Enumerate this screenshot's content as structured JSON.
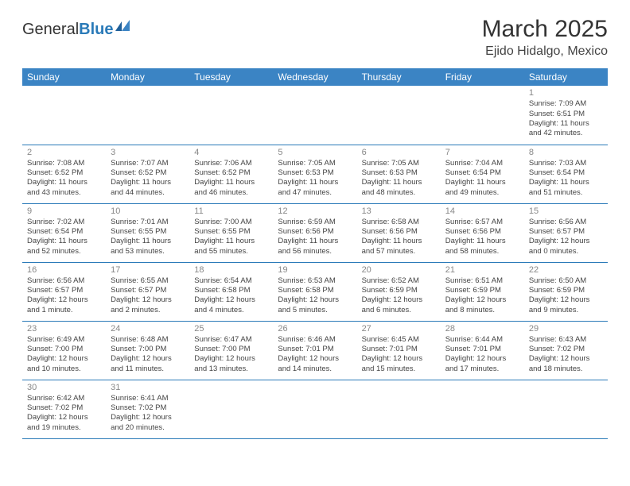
{
  "brand": {
    "part1": "General",
    "part2": "Blue"
  },
  "title": "March 2025",
  "location": "Ejido Hidalgo, Mexico",
  "colors": {
    "header_bg": "#3b84c4",
    "header_text": "#ffffff",
    "border": "#2a7ab8",
    "daynum": "#888888",
    "text": "#444444"
  },
  "weekdays": [
    "Sunday",
    "Monday",
    "Tuesday",
    "Wednesday",
    "Thursday",
    "Friday",
    "Saturday"
  ],
  "weeks": [
    [
      null,
      null,
      null,
      null,
      null,
      null,
      {
        "n": "1",
        "sr": "Sunrise: 7:09 AM",
        "ss": "Sunset: 6:51 PM",
        "dl": "Daylight: 11 hours and 42 minutes."
      }
    ],
    [
      {
        "n": "2",
        "sr": "Sunrise: 7:08 AM",
        "ss": "Sunset: 6:52 PM",
        "dl": "Daylight: 11 hours and 43 minutes."
      },
      {
        "n": "3",
        "sr": "Sunrise: 7:07 AM",
        "ss": "Sunset: 6:52 PM",
        "dl": "Daylight: 11 hours and 44 minutes."
      },
      {
        "n": "4",
        "sr": "Sunrise: 7:06 AM",
        "ss": "Sunset: 6:52 PM",
        "dl": "Daylight: 11 hours and 46 minutes."
      },
      {
        "n": "5",
        "sr": "Sunrise: 7:05 AM",
        "ss": "Sunset: 6:53 PM",
        "dl": "Daylight: 11 hours and 47 minutes."
      },
      {
        "n": "6",
        "sr": "Sunrise: 7:05 AM",
        "ss": "Sunset: 6:53 PM",
        "dl": "Daylight: 11 hours and 48 minutes."
      },
      {
        "n": "7",
        "sr": "Sunrise: 7:04 AM",
        "ss": "Sunset: 6:54 PM",
        "dl": "Daylight: 11 hours and 49 minutes."
      },
      {
        "n": "8",
        "sr": "Sunrise: 7:03 AM",
        "ss": "Sunset: 6:54 PM",
        "dl": "Daylight: 11 hours and 51 minutes."
      }
    ],
    [
      {
        "n": "9",
        "sr": "Sunrise: 7:02 AM",
        "ss": "Sunset: 6:54 PM",
        "dl": "Daylight: 11 hours and 52 minutes."
      },
      {
        "n": "10",
        "sr": "Sunrise: 7:01 AM",
        "ss": "Sunset: 6:55 PM",
        "dl": "Daylight: 11 hours and 53 minutes."
      },
      {
        "n": "11",
        "sr": "Sunrise: 7:00 AM",
        "ss": "Sunset: 6:55 PM",
        "dl": "Daylight: 11 hours and 55 minutes."
      },
      {
        "n": "12",
        "sr": "Sunrise: 6:59 AM",
        "ss": "Sunset: 6:56 PM",
        "dl": "Daylight: 11 hours and 56 minutes."
      },
      {
        "n": "13",
        "sr": "Sunrise: 6:58 AM",
        "ss": "Sunset: 6:56 PM",
        "dl": "Daylight: 11 hours and 57 minutes."
      },
      {
        "n": "14",
        "sr": "Sunrise: 6:57 AM",
        "ss": "Sunset: 6:56 PM",
        "dl": "Daylight: 11 hours and 58 minutes."
      },
      {
        "n": "15",
        "sr": "Sunrise: 6:56 AM",
        "ss": "Sunset: 6:57 PM",
        "dl": "Daylight: 12 hours and 0 minutes."
      }
    ],
    [
      {
        "n": "16",
        "sr": "Sunrise: 6:56 AM",
        "ss": "Sunset: 6:57 PM",
        "dl": "Daylight: 12 hours and 1 minute."
      },
      {
        "n": "17",
        "sr": "Sunrise: 6:55 AM",
        "ss": "Sunset: 6:57 PM",
        "dl": "Daylight: 12 hours and 2 minutes."
      },
      {
        "n": "18",
        "sr": "Sunrise: 6:54 AM",
        "ss": "Sunset: 6:58 PM",
        "dl": "Daylight: 12 hours and 4 minutes."
      },
      {
        "n": "19",
        "sr": "Sunrise: 6:53 AM",
        "ss": "Sunset: 6:58 PM",
        "dl": "Daylight: 12 hours and 5 minutes."
      },
      {
        "n": "20",
        "sr": "Sunrise: 6:52 AM",
        "ss": "Sunset: 6:59 PM",
        "dl": "Daylight: 12 hours and 6 minutes."
      },
      {
        "n": "21",
        "sr": "Sunrise: 6:51 AM",
        "ss": "Sunset: 6:59 PM",
        "dl": "Daylight: 12 hours and 8 minutes."
      },
      {
        "n": "22",
        "sr": "Sunrise: 6:50 AM",
        "ss": "Sunset: 6:59 PM",
        "dl": "Daylight: 12 hours and 9 minutes."
      }
    ],
    [
      {
        "n": "23",
        "sr": "Sunrise: 6:49 AM",
        "ss": "Sunset: 7:00 PM",
        "dl": "Daylight: 12 hours and 10 minutes."
      },
      {
        "n": "24",
        "sr": "Sunrise: 6:48 AM",
        "ss": "Sunset: 7:00 PM",
        "dl": "Daylight: 12 hours and 11 minutes."
      },
      {
        "n": "25",
        "sr": "Sunrise: 6:47 AM",
        "ss": "Sunset: 7:00 PM",
        "dl": "Daylight: 12 hours and 13 minutes."
      },
      {
        "n": "26",
        "sr": "Sunrise: 6:46 AM",
        "ss": "Sunset: 7:01 PM",
        "dl": "Daylight: 12 hours and 14 minutes."
      },
      {
        "n": "27",
        "sr": "Sunrise: 6:45 AM",
        "ss": "Sunset: 7:01 PM",
        "dl": "Daylight: 12 hours and 15 minutes."
      },
      {
        "n": "28",
        "sr": "Sunrise: 6:44 AM",
        "ss": "Sunset: 7:01 PM",
        "dl": "Daylight: 12 hours and 17 minutes."
      },
      {
        "n": "29",
        "sr": "Sunrise: 6:43 AM",
        "ss": "Sunset: 7:02 PM",
        "dl": "Daylight: 12 hours and 18 minutes."
      }
    ],
    [
      {
        "n": "30",
        "sr": "Sunrise: 6:42 AM",
        "ss": "Sunset: 7:02 PM",
        "dl": "Daylight: 12 hours and 19 minutes."
      },
      {
        "n": "31",
        "sr": "Sunrise: 6:41 AM",
        "ss": "Sunset: 7:02 PM",
        "dl": "Daylight: 12 hours and 20 minutes."
      },
      null,
      null,
      null,
      null,
      null
    ]
  ]
}
